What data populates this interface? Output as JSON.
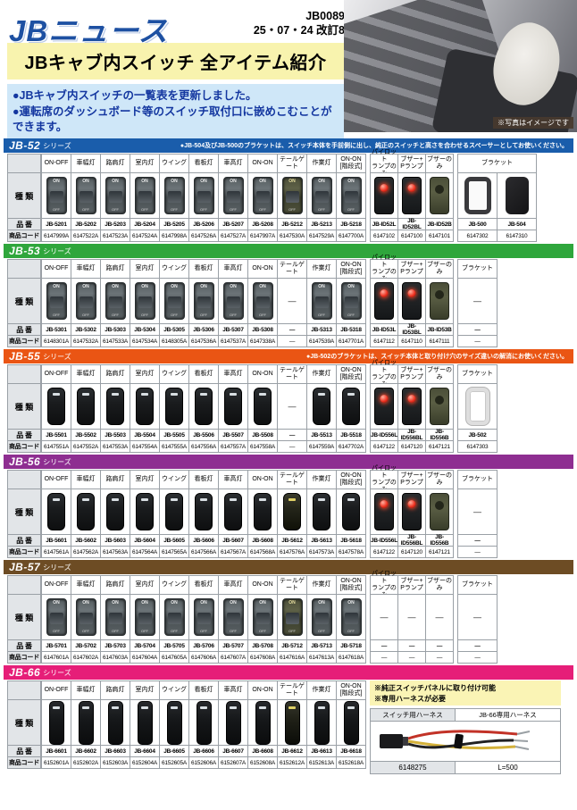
{
  "page": {
    "logo": "JBニュース",
    "issue": "JB0089",
    "date": "25・07・24 改訂8",
    "title": "JBキャブ内スイッチ 全アイテム紹介",
    "bullets": [
      "●JBキャブ内スイッチの一覧表を更新しました。",
      "●運転席のダッシュボード等のスイッチ取付口に嵌めこむことができます。"
    ],
    "photo_caption": "※写真はイメージです"
  },
  "row_labels": {
    "type": "種 類",
    "part": "品 番",
    "code": "商品コード"
  },
  "face": {
    "on": "ON",
    "off": "OFF"
  },
  "dash": "—",
  "headers": {
    "main": [
      "ON-OFF",
      "車幅灯",
      "路肩灯",
      "室内灯",
      "ウイング",
      "看板灯",
      "車高灯",
      "ON-ON",
      "テールゲート",
      "作業灯",
      "ON-ON\n[階段式]"
    ],
    "id": [
      "パイロット\nランプのみ",
      "ブザー+\nPランプ",
      "ブザーのみ"
    ],
    "bracket": "ブラケット"
  },
  "series": [
    {
      "name": "JB-52",
      "suffix": "シリーズ",
      "color": "#1a5dab",
      "note": "●JB-504及びJB-500のブラケットは、スイッチ本体を手前側に出し、純正のスイッチと高さを合わせるスペーサーとしてお使いください。",
      "main": [
        {
          "part": "JB-5201",
          "code": "6147999A",
          "sw": "rocker"
        },
        {
          "part": "JB-5202",
          "code": "6147522A",
          "sw": "rocker"
        },
        {
          "part": "JB-5203",
          "code": "6147523A",
          "sw": "rocker"
        },
        {
          "part": "JB-5204",
          "code": "6147524A",
          "sw": "rocker"
        },
        {
          "part": "JB-5205",
          "code": "6147998A",
          "sw": "rocker"
        },
        {
          "part": "JB-5206",
          "code": "6147526A",
          "sw": "rocker"
        },
        {
          "part": "JB-5207",
          "code": "6147527A",
          "sw": "rocker"
        },
        {
          "part": "JB-5208",
          "code": "6147997A",
          "sw": "rocker"
        },
        {
          "part": "JB-5212",
          "code": "6147530A",
          "sw": "rockerTail"
        },
        {
          "part": "JB-5213",
          "code": "6147529A",
          "sw": "rocker"
        },
        {
          "part": "JB-5218",
          "code": "6147700A",
          "sw": "rocker"
        }
      ],
      "id": [
        {
          "part": "JB-ID52L",
          "code": "6147102",
          "sw": "pilot"
        },
        {
          "part": "JB-ID52BL",
          "code": "6147100",
          "sw": "pilot"
        },
        {
          "part": "JB-ID52B",
          "code": "6147101",
          "sw": "buzzer"
        }
      ],
      "bracket": [
        {
          "part": "JB-500",
          "code": "6147302",
          "sw": "frameD"
        },
        {
          "part": "JB-504",
          "code": "6147310",
          "sw": "clip"
        }
      ]
    },
    {
      "name": "JB-53",
      "suffix": "シリーズ",
      "color": "#2fa63c",
      "note": "",
      "main": [
        {
          "part": "JB-5301",
          "code": "6148301A",
          "sw": "rocker"
        },
        {
          "part": "JB-5302",
          "code": "6147532A",
          "sw": "rocker"
        },
        {
          "part": "JB-5303",
          "code": "6147533A",
          "sw": "rocker"
        },
        {
          "part": "JB-5304",
          "code": "6147534A",
          "sw": "rocker"
        },
        {
          "part": "JB-5305",
          "code": "6148305A",
          "sw": "rocker"
        },
        {
          "part": "JB-5306",
          "code": "6147536A",
          "sw": "rocker"
        },
        {
          "part": "JB-5307",
          "code": "6147537A",
          "sw": "rocker"
        },
        {
          "part": "JB-5308",
          "code": "6147338A",
          "sw": "rocker"
        },
        {
          "part": "—",
          "code": "—",
          "sw": "none"
        },
        {
          "part": "JB-5313",
          "code": "6147539A",
          "sw": "rocker"
        },
        {
          "part": "JB-5318",
          "code": "6147701A",
          "sw": "rocker"
        }
      ],
      "id": [
        {
          "part": "JB-ID53L",
          "code": "6147112",
          "sw": "pilot"
        },
        {
          "part": "JB-ID53BL",
          "code": "6147110",
          "sw": "pilot"
        },
        {
          "part": "JB-ID53B",
          "code": "6147111",
          "sw": "buzzer"
        }
      ],
      "bracket": [
        {
          "part": "—",
          "code": "—",
          "sw": "none"
        }
      ]
    },
    {
      "name": "JB-55",
      "suffix": "シリーズ",
      "color": "#ea5514",
      "note": "●JB-502のブラケットは、スイッチ本体と取り付け穴のサイズ違いの解消にお使いください。",
      "main": [
        {
          "part": "JB-5501",
          "code": "6147551A",
          "sw": "flat"
        },
        {
          "part": "JB-5502",
          "code": "6147552A",
          "sw": "flat"
        },
        {
          "part": "JB-5503",
          "code": "6147553A",
          "sw": "flat"
        },
        {
          "part": "JB-5504",
          "code": "6147554A",
          "sw": "flat"
        },
        {
          "part": "JB-5505",
          "code": "6147555A",
          "sw": "flat"
        },
        {
          "part": "JB-5506",
          "code": "6147556A",
          "sw": "flat"
        },
        {
          "part": "JB-5507",
          "code": "6147557A",
          "sw": "flat"
        },
        {
          "part": "JB-5508",
          "code": "6147558A",
          "sw": "flat"
        },
        {
          "part": "—",
          "code": "—",
          "sw": "none"
        },
        {
          "part": "JB-5513",
          "code": "6147559A",
          "sw": "flat"
        },
        {
          "part": "JB-5518",
          "code": "6147702A",
          "sw": "flat"
        }
      ],
      "id": [
        {
          "part": "JB-ID556L",
          "code": "6147122",
          "sw": "pilot"
        },
        {
          "part": "JB-ID556BL",
          "code": "6147120",
          "sw": "pilot"
        },
        {
          "part": "JB-ID556B",
          "code": "6147121",
          "sw": "buzzer"
        }
      ],
      "bracket": [
        {
          "part": "JB-502",
          "code": "6147303",
          "sw": "frameL"
        }
      ]
    },
    {
      "name": "JB-56",
      "suffix": "シリーズ",
      "color": "#8e2e91",
      "note": "",
      "main": [
        {
          "part": "JB-5601",
          "code": "6147561A",
          "sw": "flat"
        },
        {
          "part": "JB-5602",
          "code": "6147562A",
          "sw": "flat"
        },
        {
          "part": "JB-5603",
          "code": "6147563A",
          "sw": "flat"
        },
        {
          "part": "JB-5604",
          "code": "6147564A",
          "sw": "flat"
        },
        {
          "part": "JB-5605",
          "code": "6147565A",
          "sw": "flat"
        },
        {
          "part": "JB-5606",
          "code": "6147566A",
          "sw": "flat"
        },
        {
          "part": "JB-5607",
          "code": "6147567A",
          "sw": "flat"
        },
        {
          "part": "JB-5608",
          "code": "6147568A",
          "sw": "flat"
        },
        {
          "part": "JB-5612",
          "code": "6147576A",
          "sw": "flatTail"
        },
        {
          "part": "JB-5613",
          "code": "6147573A",
          "sw": "flat"
        },
        {
          "part": "JB-5618",
          "code": "6147578A",
          "sw": "flat"
        }
      ],
      "id": [
        {
          "part": "JB-ID556L",
          "code": "6147122",
          "sw": "pilot"
        },
        {
          "part": "JB-ID556BL",
          "code": "6147120",
          "sw": "pilot"
        },
        {
          "part": "JB-ID556B",
          "code": "6147121",
          "sw": "buzzer"
        }
      ],
      "bracket": [
        {
          "part": "—",
          "code": "—",
          "sw": "none"
        }
      ]
    },
    {
      "name": "JB-57",
      "suffix": "シリーズ",
      "color": "#6d4c24",
      "note": "",
      "main": [
        {
          "part": "JB-5701",
          "code": "6147601A",
          "sw": "rocker"
        },
        {
          "part": "JB-5702",
          "code": "6147602A",
          "sw": "rocker"
        },
        {
          "part": "JB-5703",
          "code": "6147603A",
          "sw": "rocker"
        },
        {
          "part": "JB-5704",
          "code": "6147604A",
          "sw": "rocker"
        },
        {
          "part": "JB-5705",
          "code": "6147605A",
          "sw": "rocker"
        },
        {
          "part": "JB-5706",
          "code": "6147606A",
          "sw": "rocker"
        },
        {
          "part": "JB-5707",
          "code": "6147607A",
          "sw": "rocker"
        },
        {
          "part": "JB-5708",
          "code": "6147608A",
          "sw": "rocker"
        },
        {
          "part": "JB-5712",
          "code": "6147616A",
          "sw": "rockerTail"
        },
        {
          "part": "JB-5713",
          "code": "6147613A",
          "sw": "rocker"
        },
        {
          "part": "JB-5718",
          "code": "6147618A",
          "sw": "rocker"
        }
      ],
      "id": [
        {
          "part": "—",
          "code": "—",
          "sw": "none"
        },
        {
          "part": "—",
          "code": "—",
          "sw": "none"
        },
        {
          "part": "—",
          "code": "—",
          "sw": "none"
        }
      ],
      "bracket": [
        {
          "part": "—",
          "code": "—",
          "sw": "none"
        }
      ]
    },
    {
      "name": "JB-66",
      "suffix": "シリーズ",
      "color": "#e61e78",
      "note": "",
      "main": [
        {
          "part": "JB-6601",
          "code": "6152601A",
          "sw": "tall"
        },
        {
          "part": "JB-6602",
          "code": "6152602A",
          "sw": "tall"
        },
        {
          "part": "JB-6603",
          "code": "6152603A",
          "sw": "tall"
        },
        {
          "part": "JB-6604",
          "code": "6152604A",
          "sw": "tall"
        },
        {
          "part": "JB-6605",
          "code": "6152605A",
          "sw": "tall"
        },
        {
          "part": "JB-6606",
          "code": "6152606A",
          "sw": "tall"
        },
        {
          "part": "JB-6607",
          "code": "6152607A",
          "sw": "tall"
        },
        {
          "part": "JB-6608",
          "code": "6152608A",
          "sw": "tall"
        },
        {
          "part": "JB-6612",
          "code": "6152612A",
          "sw": "tallTail"
        },
        {
          "part": "JB-6613",
          "code": "6152613A",
          "sw": "tall"
        },
        {
          "part": "JB-6618",
          "code": "6152618A",
          "sw": "tall"
        }
      ],
      "panel": {
        "notes": "※純正スイッチパネルに取り付け可能\n※専用ハーネスが必要",
        "harness_col1": "スイッチ用ハーネス",
        "harness_col2": "JB-66専用ハーネス",
        "harness_code": "6148275",
        "harness_length": "L=500"
      }
    }
  ]
}
